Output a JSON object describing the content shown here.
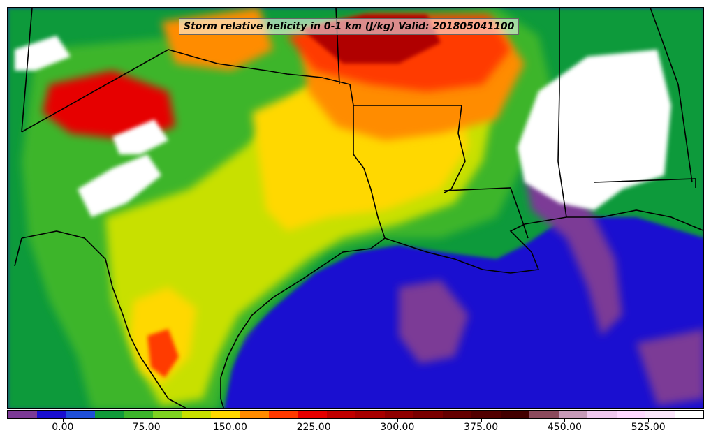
{
  "title": "Storm relative helicity in 0-1 km (J/kg) Valid: 201805041100",
  "colorbar": {
    "colors": [
      "#7b3a96",
      "#1a0fd0",
      "#1f4fd8",
      "#119a3a",
      "#3cb52a",
      "#7ed321",
      "#c8e000",
      "#ffd800",
      "#ff8c00",
      "#ff3a00",
      "#e60000",
      "#c00000",
      "#a80000",
      "#900000",
      "#7a0000",
      "#650000",
      "#520000",
      "#420000",
      "#8b4a5c",
      "#c79bb8",
      "#f0c8ee",
      "#ffd8ff",
      "#fbe6fb",
      "#ffffff"
    ],
    "tick_labels": [
      "0.00",
      "75.00",
      "150.00",
      "225.00",
      "300.00",
      "375.00",
      "450.00",
      "525.00"
    ],
    "tick_values": [
      0,
      75,
      150,
      225,
      300,
      375,
      450,
      525
    ],
    "min": -50,
    "max": 575
  }
}
